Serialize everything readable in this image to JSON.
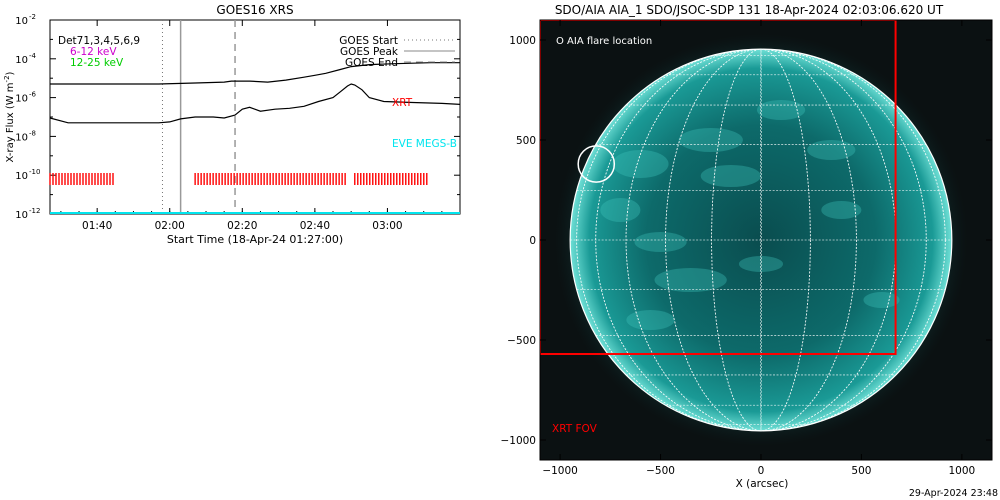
{
  "footer": {
    "timestamp": "29-Apr-2024 23:48"
  },
  "chart_data": [
    {
      "type": "line",
      "title": "GOES16 XRS",
      "xlabel": "Start Time (18-Apr-24 01:27:00)",
      "ylabel": "X-ray Flux (W m",
      "ylabel_exp": "-2",
      "ylabel_close": ")",
      "x_unit": "minutes after 01:27:00",
      "xlim": [
        0,
        113
      ],
      "ylim_log10": [
        -12,
        -2
      ],
      "x_ticks": [
        {
          "x": 13,
          "label": "01:40"
        },
        {
          "x": 33,
          "label": "02:00"
        },
        {
          "x": 53,
          "label": "02:20"
        },
        {
          "x": 73,
          "label": "02:40"
        },
        {
          "x": 93,
          "label": "03:00"
        }
      ],
      "y_ticks": [
        {
          "exp": -12,
          "label": "10",
          "sup": "-12"
        },
        {
          "exp": -10,
          "label": "10",
          "sup": "-10"
        },
        {
          "exp": -8,
          "label": "10",
          "sup": "-8"
        },
        {
          "exp": -6,
          "label": "10",
          "sup": "-6"
        },
        {
          "exp": -4,
          "label": "10",
          "sup": "-4"
        },
        {
          "exp": -2,
          "label": "10",
          "sup": "-2"
        }
      ],
      "legend_left": [
        {
          "text": "Det71,3,4,5,6,9",
          "color": "#000000"
        },
        {
          "text": "6-12 keV",
          "color": "#cc00cc"
        },
        {
          "text": "12-25 keV",
          "color": "#00cc00"
        }
      ],
      "legend_right": [
        {
          "text": "GOES Start",
          "style": "dotted"
        },
        {
          "text": "GOES Peak",
          "style": "solid"
        },
        {
          "text": "GOES End",
          "style": "dashed"
        }
      ],
      "annotations": [
        {
          "text": "XRT",
          "color": "#ff0000"
        },
        {
          "text": "EVE MEGS-B",
          "color": "#00e5ee"
        }
      ],
      "markers": {
        "goes_start": 31,
        "goes_peak": 36,
        "goes_end": 51
      },
      "series": [
        {
          "color": "#000000",
          "x": [
            0,
            10,
            20,
            30,
            40,
            48,
            50,
            55,
            60,
            65,
            70,
            73,
            76,
            80,
            83,
            88,
            95,
            105,
            113
          ],
          "log10_y": [
            -5.3,
            -5.3,
            -5.3,
            -5.3,
            -5.25,
            -5.2,
            -5.15,
            -5.15,
            -5.2,
            -5.1,
            -4.95,
            -4.85,
            -4.75,
            -4.55,
            -4.4,
            -4.3,
            -4.25,
            -4.2,
            -4.2
          ]
        },
        {
          "color": "#000000",
          "x": [
            0,
            5,
            10,
            20,
            30,
            33,
            36,
            40,
            45,
            48,
            51,
            53,
            55,
            58,
            62,
            66,
            70,
            74,
            78,
            80,
            82,
            83,
            84,
            86,
            88,
            92,
            100,
            108,
            113
          ],
          "log10_y": [
            -7.05,
            -7.3,
            -7.3,
            -7.3,
            -7.3,
            -7.25,
            -7.1,
            -7.0,
            -7.0,
            -7.05,
            -6.9,
            -6.6,
            -6.5,
            -6.7,
            -6.6,
            -6.55,
            -6.45,
            -6.2,
            -6.0,
            -5.7,
            -5.4,
            -5.3,
            -5.35,
            -5.6,
            -6.0,
            -6.2,
            -6.25,
            -6.3,
            -6.35
          ]
        }
      ],
      "xrt_coverage": [
        [
          0,
          18
        ],
        [
          40,
          82
        ],
        [
          84,
          104
        ]
      ],
      "eve_level_log10": -12
    },
    {
      "type": "image",
      "title": "SDO/AIA AIA_1 SDO/JSOC-SDP 131 18-Apr-2024 02:03:06.620 UT",
      "xlabel": "X (arcsec)",
      "xlim": [
        -1100,
        1150
      ],
      "ylim": [
        -1100,
        1100
      ],
      "x_ticks": [
        -1000,
        -500,
        0,
        500,
        1000
      ],
      "y_ticks": [
        -1000,
        -500,
        0,
        500,
        1000
      ],
      "legend": "O AIA flare location",
      "fov_label": "XRT FOV",
      "solar_radius_arcsec": 950,
      "flare_location": {
        "x": -820,
        "y": 380,
        "r": 90
      },
      "xrt_fov": {
        "x0": -1100,
        "x1": 670,
        "y0": -570,
        "y1": 1100
      },
      "colors": {
        "disk": "#0e7473",
        "fov": "#ff0000",
        "limb": "#ffffff"
      }
    }
  ]
}
